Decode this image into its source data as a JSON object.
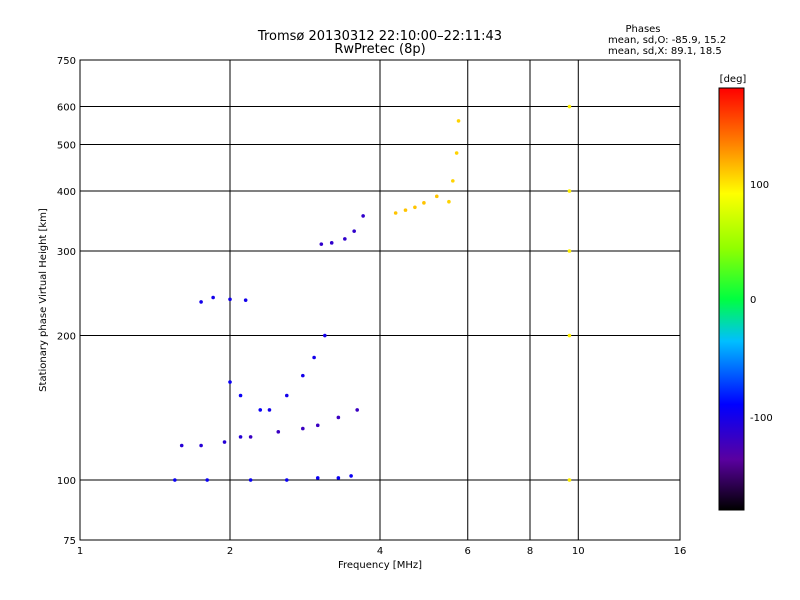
{
  "title": "Tromsø 20130312 22:10:00–22:11:43",
  "subtitle": "RwPretec (8p)",
  "phase_box": {
    "heading": "Phases",
    "line_o": "mean, sd,O: -85.9, 15.2",
    "line_x": "mean, sd,X:  89.1, 18.5"
  },
  "colorbar": {
    "unit": "[deg]",
    "ticks": [
      "100",
      "0",
      "-100"
    ]
  },
  "chart_data": {
    "type": "scatter",
    "xlabel": "Frequency [MHz]",
    "ylabel": "Stationary phase Virtual Height [km]",
    "xscale": "log",
    "yscale": "log",
    "xlim": [
      1,
      16
    ],
    "ylim": [
      75,
      750
    ],
    "xticks": [
      "1",
      "2",
      "4",
      "6",
      "8",
      "10",
      "16"
    ],
    "yticks": [
      "75",
      "100",
      "200",
      "300",
      "400",
      "500",
      "600",
      "750"
    ],
    "grid": true,
    "colorscale": {
      "label": "[deg]",
      "min": -180,
      "max": 180
    },
    "series": [
      {
        "x": [
          1.55,
          1.8,
          2.2,
          2.6,
          3.0,
          3.3,
          3.5
        ],
        "y": [
          100,
          100,
          100,
          100,
          101,
          101,
          102
        ],
        "phase": -95
      },
      {
        "x": [
          1.6,
          1.75,
          1.95,
          2.1
        ],
        "y": [
          118,
          118,
          120,
          123
        ],
        "phase": -110
      },
      {
        "x": [
          2.2,
          2.5,
          2.8,
          3.0,
          3.3,
          3.6
        ],
        "y": [
          123,
          126,
          128,
          130,
          135,
          140
        ],
        "phase": -120
      },
      {
        "x": [
          2.0,
          2.1,
          2.3
        ],
        "y": [
          160,
          150,
          140
        ],
        "phase": -95
      },
      {
        "x": [
          2.4,
          2.6,
          2.8,
          2.95,
          3.1
        ],
        "y": [
          140,
          150,
          165,
          180,
          200
        ],
        "phase": -100
      },
      {
        "x": [
          1.75,
          1.85,
          2.0,
          2.15
        ],
        "y": [
          235,
          240,
          238,
          237
        ],
        "phase": -100
      },
      {
        "x": [
          3.05,
          3.2,
          3.4,
          3.55,
          3.7
        ],
        "y": [
          310,
          312,
          318,
          330,
          355
        ],
        "phase": -115
      },
      {
        "x": [
          4.3,
          4.5,
          4.7,
          4.9,
          5.2
        ],
        "y": [
          360,
          365,
          370,
          378,
          390
        ],
        "phase": 110
      },
      {
        "x": [
          5.5,
          5.6,
          5.7,
          5.75
        ],
        "y": [
          380,
          420,
          480,
          560
        ],
        "phase": 105
      },
      {
        "x": [
          9.6,
          9.6,
          9.6,
          9.6,
          9.6
        ],
        "y": [
          100,
          200,
          300,
          400,
          600
        ],
        "phase": 95
      }
    ]
  }
}
